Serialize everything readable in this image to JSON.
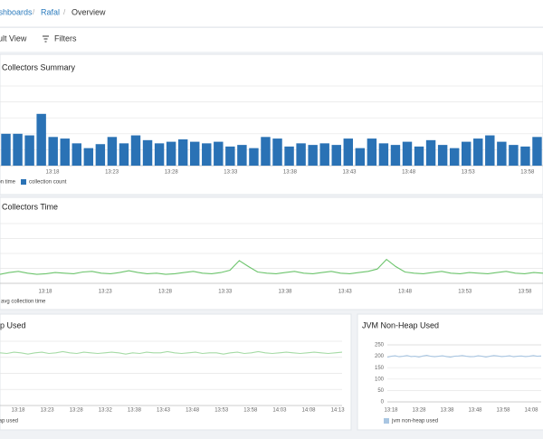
{
  "breadcrumbs": [
    "Dashboards",
    "Rafal",
    "Overview"
  ],
  "toolbar": {
    "view": "Default View",
    "filters": "Filters"
  },
  "panels": [
    {
      "title": "GC Collectors Summary",
      "chart": {
        "type": "bar",
        "ylim": [
          0,
          100
        ],
        "x_labels": [
          "13:18",
          "13:23",
          "13:28",
          "13:33",
          "13:38",
          "13:43",
          "13:48",
          "13:53",
          "13:58"
        ],
        "series": [
          {
            "name": "collection time",
            "color": "#9cc3e6"
          },
          {
            "name": "collection count",
            "color": "#2a72b5",
            "values": [
              40,
              40,
              38,
              65,
              36,
              34,
              28,
              22,
              27,
              36,
              28,
              38,
              32,
              28,
              30,
              33,
              30,
              28,
              30,
              24,
              26,
              22,
              36,
              34,
              24,
              28,
              26,
              28,
              26,
              34,
              22,
              34,
              28,
              26,
              30,
              24,
              32,
              26,
              22,
              30,
              34,
              38,
              30,
              26,
              24,
              36
            ]
          }
        ]
      }
    },
    {
      "title": "GC Collectors Time",
      "chart": {
        "type": "line",
        "ylim": [
          0,
          100
        ],
        "x_labels": [
          "13:18",
          "13:23",
          "13:28",
          "13:33",
          "13:38",
          "13:43",
          "13:48",
          "13:53",
          "13:58"
        ],
        "series": [
          {
            "name": "avg collection time",
            "color": "#6cc46c",
            "values": [
              15,
              18,
              20,
              17,
              15,
              16,
              18,
              17,
              16,
              19,
              20,
              17,
              16,
              18,
              21,
              18,
              16,
              17,
              15,
              16,
              18,
              20,
              17,
              16,
              18,
              22,
              38,
              28,
              19,
              17,
              16,
              18,
              20,
              17,
              16,
              18,
              20,
              17,
              16,
              18,
              20,
              24,
              40,
              28,
              19,
              17,
              16,
              18,
              20,
              17,
              16,
              18,
              17,
              16,
              18,
              20,
              17,
              16,
              18,
              17
            ]
          }
        ]
      }
    },
    {
      "title": "JVM Heap Used",
      "chart": {
        "type": "line",
        "ylim": [
          0,
          100
        ],
        "x_labels": [
          "13:18",
          "13:23",
          "13:28",
          "13:32",
          "13:38",
          "13:43",
          "13:48",
          "13:53",
          "13:58",
          "14:03",
          "14:08",
          "14:13"
        ],
        "series": [
          {
            "name": "jvm heap used",
            "color": "#a6dba6",
            "values": [
              82,
              81,
              83,
              82,
              80,
              82,
              83,
              81,
              82,
              84,
              82,
              81,
              83,
              82,
              81,
              82,
              83,
              82,
              80,
              82,
              81,
              83,
              82,
              82,
              84,
              82,
              81,
              82,
              83,
              81,
              82,
              82,
              80,
              82,
              83,
              81,
              82,
              84,
              82,
              81,
              82,
              83,
              82,
              81,
              82,
              83,
              82,
              81,
              82,
              83
            ]
          }
        ]
      }
    },
    {
      "title": "JVM Non-Heap Used",
      "chart": {
        "type": "line",
        "ylim": [
          0,
          250
        ],
        "yticks": [
          0,
          50,
          100,
          150,
          200,
          250
        ],
        "x_labels": [
          "13:18",
          "13:28",
          "13:38",
          "13:48",
          "13:58",
          "14:08"
        ],
        "series": [
          {
            "name": "jvm non-heap used",
            "color": "#a9c6e2",
            "values": [
              196,
              200,
              202,
              198,
              200,
              203,
              199,
              200,
              197,
              201,
              204,
              200,
              198,
              200,
              202,
              199,
              196,
              200,
              201,
              203,
              200,
              198,
              199,
              202,
              200,
              197,
              200,
              203,
              201,
              199,
              200,
              202,
              198,
              200,
              201,
              199,
              200,
              203,
              200,
              201
            ]
          }
        ]
      }
    }
  ]
}
